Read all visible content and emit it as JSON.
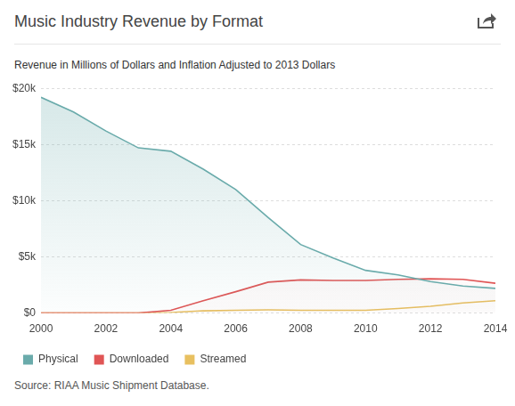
{
  "chart_data": {
    "type": "line",
    "title": "Music Industry Revenue by Format",
    "subtitle": "Revenue in Millions of Dollars and Inflation Adjusted to 2013 Dollars",
    "source": "Source: RIAA Music Shipment Database.",
    "x": [
      2000,
      2001,
      2002,
      2003,
      2004,
      2005,
      2006,
      2007,
      2008,
      2009,
      2010,
      2011,
      2012,
      2013,
      2014
    ],
    "series": [
      {
        "name": "Physical",
        "color": "#6aabab",
        "values": [
          19200,
          17900,
          16200,
          14700,
          14400,
          12800,
          11000,
          8500,
          6100,
          4900,
          3800,
          3400,
          2800,
          2400,
          2200
        ]
      },
      {
        "name": "Downloaded",
        "color": "#e05555",
        "values": [
          0,
          0,
          0,
          0,
          250,
          1100,
          1900,
          2750,
          2950,
          2900,
          2900,
          3000,
          3050,
          3000,
          2650
        ]
      },
      {
        "name": "Streamed",
        "color": "#e8c060",
        "values": [
          0,
          0,
          0,
          0,
          50,
          200,
          250,
          280,
          250,
          250,
          250,
          400,
          600,
          900,
          1100
        ]
      }
    ],
    "xlim": [
      2000,
      2014
    ],
    "xticks": [
      2000,
      2002,
      2004,
      2006,
      2008,
      2010,
      2012,
      2014
    ],
    "ylim": [
      0,
      20000
    ],
    "yticks": [
      {
        "value": 0,
        "label": "$0"
      },
      {
        "value": 5000,
        "label": "$5k"
      },
      {
        "value": 10000,
        "label": "$10k"
      },
      {
        "value": 15000,
        "label": "$15k"
      },
      {
        "value": 20000,
        "label": "$20k"
      }
    ],
    "grid": true,
    "legend": "bottom"
  }
}
